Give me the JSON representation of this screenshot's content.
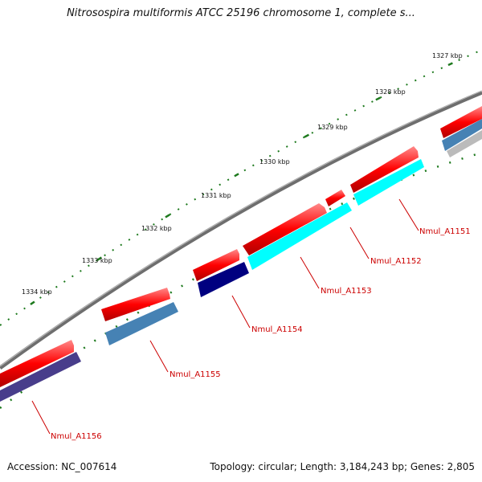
{
  "title": "Nitrosospira multiformis ATCC 25196 chromosome 1, complete s...",
  "footer": {
    "accession": "Accession: NC_007614",
    "summary": "Topology: circular; Length: 3,184,243 bp; Genes: 2,805"
  },
  "colors": {
    "backbone": "#808080",
    "tick": "#1e7a1e",
    "gene_forward": "#ff0000",
    "label": "#cc0000",
    "cyan": "#00ffff",
    "steel": "#4682b4",
    "navy": "#000080",
    "slate": "#483d8b",
    "silver": "#bbbbbb"
  },
  "scale_labels": [
    "1327 kbp",
    "1328 kbp",
    "1329 kbp",
    "1330 kbp",
    "1331 kbp",
    "1332 kbp",
    "1333 kbp",
    "1334 kbp"
  ],
  "gene_labels": [
    "Nmul_A1151",
    "Nmul_A1152",
    "Nmul_A1153",
    "Nmul_A1154",
    "Nmul_A1155",
    "Nmul_A1156"
  ],
  "features": [
    {
      "name": "Nmul_A1151",
      "forward_color": "#ff0000",
      "second_color": "#00ffff"
    },
    {
      "name": "Nmul_A1152",
      "forward_color": "#ff0000",
      "second_color": "#00ffff"
    },
    {
      "name": "Nmul_A1153",
      "forward_color": "#ff0000",
      "second_color": "#00ffff"
    },
    {
      "name": "Nmul_A1154",
      "forward_color": "#ff0000",
      "second_color": "#000080"
    },
    {
      "name": "Nmul_A1155",
      "forward_color": "#ff0000",
      "second_color": "#4682b4"
    },
    {
      "name": "Nmul_A1156",
      "forward_color": "#ff0000",
      "second_color": "#483d8b"
    }
  ]
}
